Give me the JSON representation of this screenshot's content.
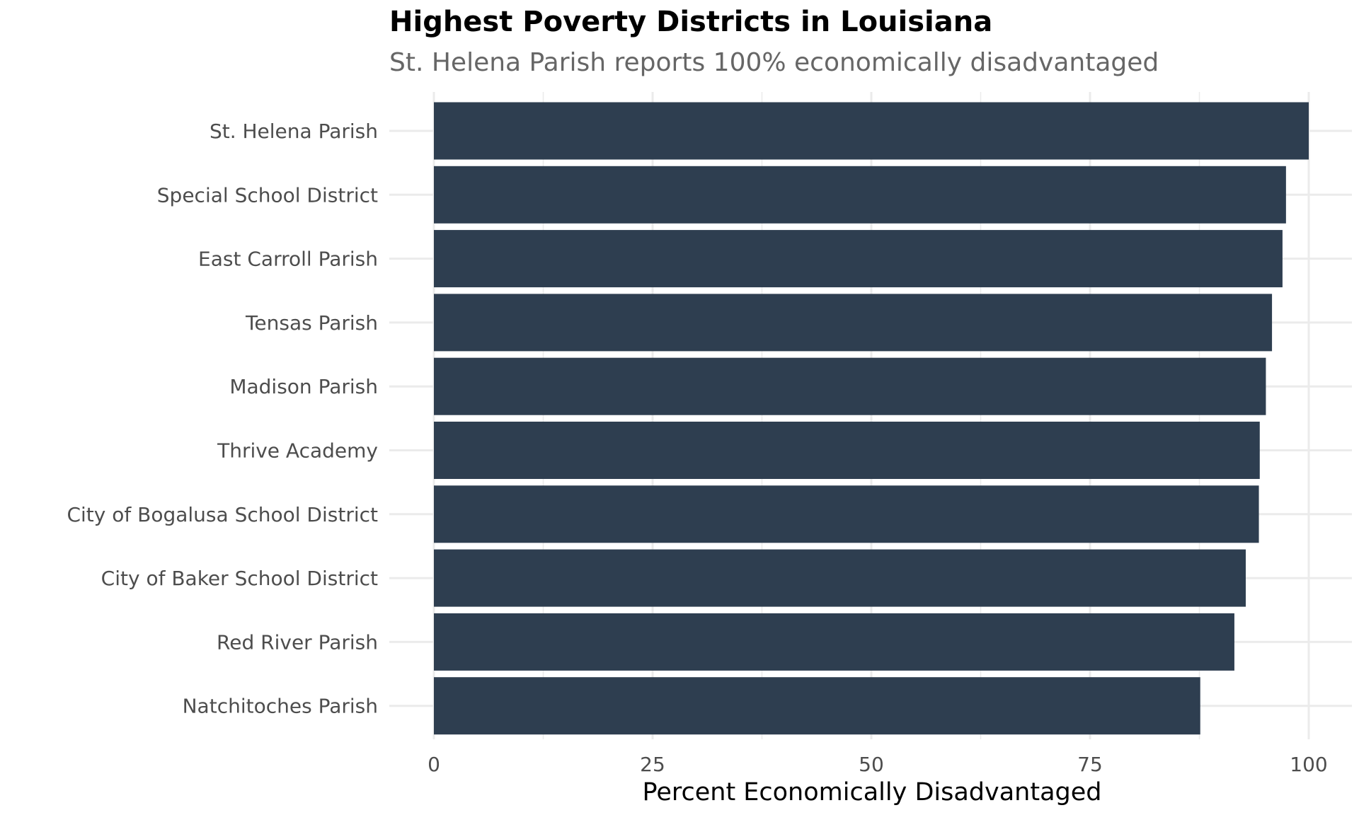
{
  "chart_data": {
    "type": "bar",
    "orientation": "horizontal",
    "title": "Highest Poverty Districts in Louisiana",
    "subtitle": "St. Helena Parish reports 100% economically disadvantaged",
    "xlabel": "Percent Economically Disadvantaged",
    "ylabel": "",
    "categories": [
      "St. Helena Parish",
      "Special School District",
      "East Carroll Parish",
      "Tensas Parish",
      "Madison Parish",
      "Thrive Academy",
      "City of Bogalusa School District",
      "City of Baker School District",
      "Red River Parish",
      "Natchitoches Parish"
    ],
    "values": [
      100,
      97.4,
      97.0,
      95.8,
      95.1,
      94.4,
      94.3,
      92.8,
      91.5,
      87.6
    ],
    "xlim": [
      0,
      100
    ],
    "xticks": [
      0,
      25,
      50,
      75,
      100
    ],
    "grid": true,
    "legend": "none",
    "colors": {
      "bar": "#2e3e50",
      "grid": "#ebebeb",
      "tick_text": "#4d4d4d",
      "axis_title": "#000000"
    }
  }
}
